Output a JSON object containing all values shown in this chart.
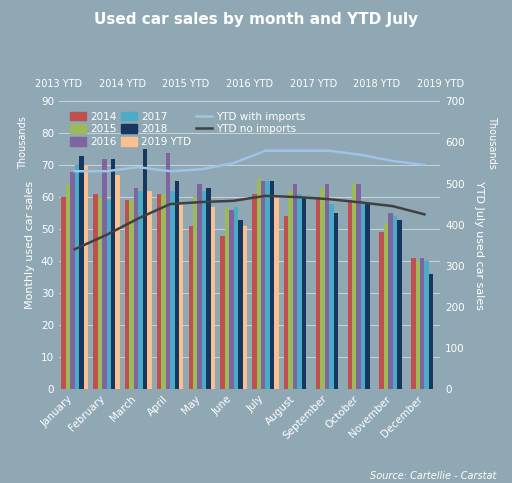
{
  "title": "Used car sales by month and YTD July",
  "months": [
    "January",
    "February",
    "March",
    "April",
    "May",
    "June",
    "July",
    "August",
    "September",
    "October",
    "November",
    "December"
  ],
  "ylabel_left": "Monthly used car sales",
  "ylabel_right": "YTD July used car sales",
  "source": "Source: Cartellie - Carstat",
  "ylim_left": [
    0,
    90
  ],
  "ylim_right": [
    0,
    700
  ],
  "yticks_left": [
    0,
    10,
    20,
    30,
    40,
    50,
    60,
    70,
    80,
    90
  ],
  "yticks_right": [
    0,
    100,
    200,
    300,
    400,
    500,
    600,
    700
  ],
  "bar_series": [
    "2014",
    "2015",
    "2016",
    "2017",
    "2018",
    "2019 YTD"
  ],
  "bar_data": {
    "2014": [
      60,
      61,
      59,
      61,
      51,
      48,
      61,
      54,
      60,
      59,
      49,
      41
    ],
    "2015": [
      64,
      60,
      59,
      61,
      60,
      57,
      66,
      62,
      63,
      64,
      52,
      40
    ],
    "2016": [
      68,
      72,
      63,
      74,
      64,
      56,
      65,
      64,
      64,
      64,
      55,
      41
    ],
    "2017": [
      70,
      59,
      62,
      62,
      62,
      57,
      65,
      61,
      58,
      58,
      54,
      40
    ],
    "2018": [
      73,
      72,
      75,
      65,
      63,
      53,
      65,
      60,
      55,
      58,
      53,
      36
    ],
    "2019 YTD": [
      70,
      67,
      62,
      58,
      57,
      51,
      60,
      0,
      0,
      0,
      0,
      0
    ]
  },
  "bar_colors": {
    "2014": "#C0504D",
    "2015": "#9BBB59",
    "2016": "#8064A2",
    "2017": "#4BACC6",
    "2018": "#17375E",
    "2019 YTD": "#FAC090"
  },
  "line_ytd_with_imports_x": [
    0,
    1,
    2,
    3,
    4,
    5,
    6,
    7,
    8,
    9,
    10,
    11
  ],
  "line_ytd_with_imports": [
    530,
    530,
    540,
    530,
    535,
    550,
    580,
    580,
    580,
    570,
    555,
    545
  ],
  "line_ytd_no_imports_x": [
    0,
    1,
    2,
    3,
    4,
    5,
    6,
    7,
    8,
    9,
    10,
    11
  ],
  "line_ytd_no_imports": [
    340,
    375,
    415,
    450,
    455,
    458,
    470,
    467,
    462,
    454,
    445,
    425
  ],
  "line_color_with_imports": "#9DC3E6",
  "line_color_no_imports": "#404040",
  "ytd_labels": [
    "2013 YTD",
    "2014 YTD",
    "2015 YTD",
    "2016 YTD",
    "2017 YTD",
    "2018 YTD",
    "2019 YTD"
  ],
  "background_color": "#8FA8B4",
  "gridcolor": "#FFFFFF"
}
